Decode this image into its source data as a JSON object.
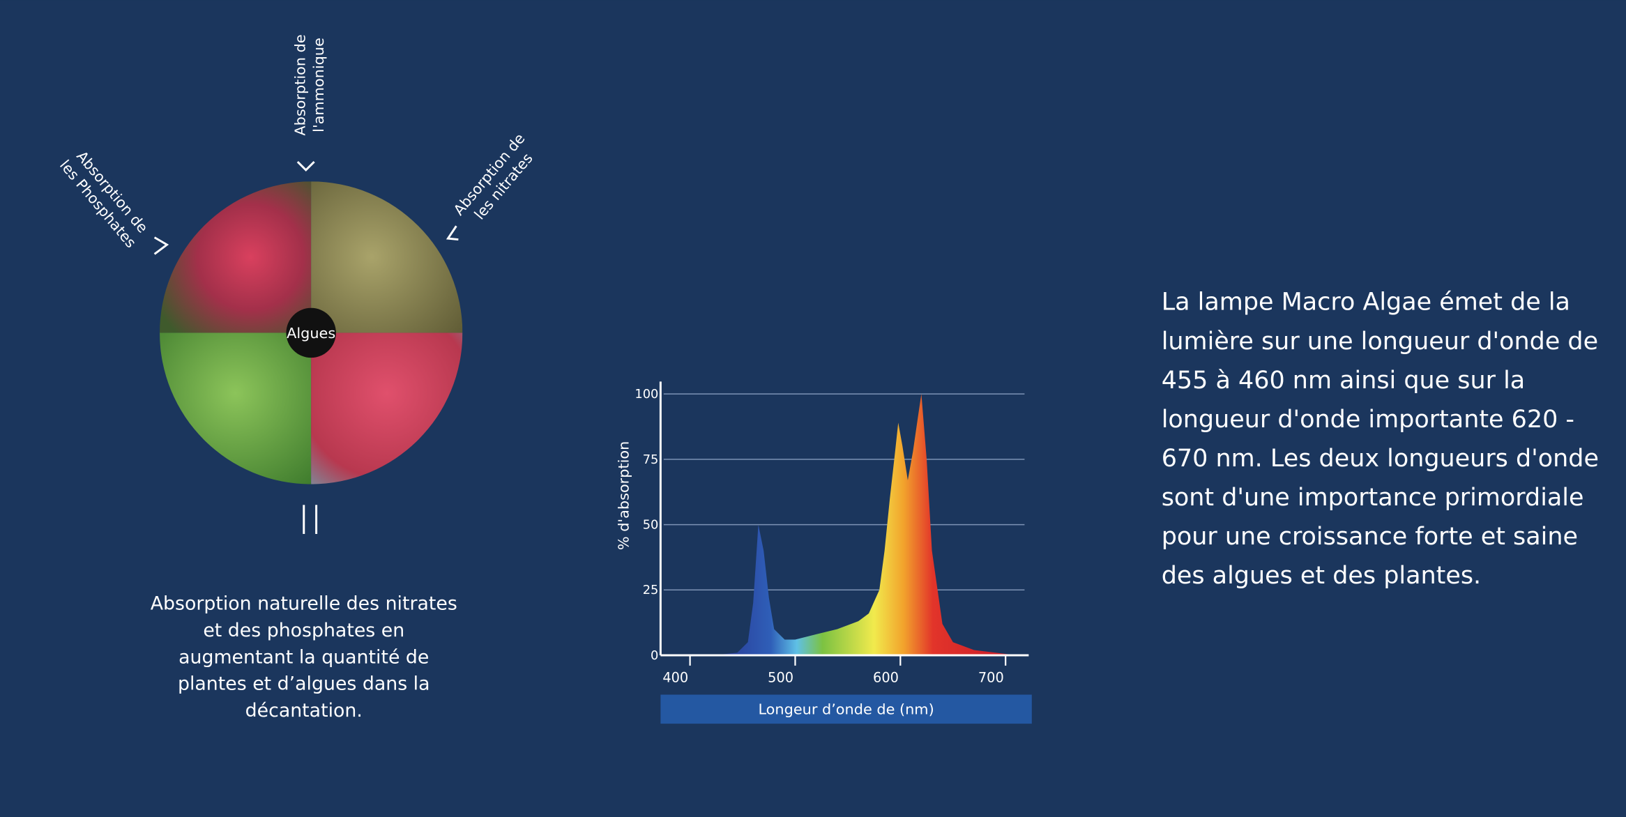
{
  "diagram": {
    "center_label": "Algues",
    "top_label": [
      "Absorption de",
      "l'ammonique"
    ],
    "left_label": [
      "Absorption de",
      "les Phosphates"
    ],
    "right_label": [
      "Absorption de",
      "les nitrates"
    ],
    "caption": [
      "Absorption naturelle des nitrates",
      "et des phosphates en",
      "augmentant la quantité de",
      "plantes et d’algues dans la",
      "décantation."
    ]
  },
  "chart_data": {
    "type": "area",
    "x_label": "Longeur d’onde de (nm)",
    "y_label": "% d'absorption",
    "x": [
      380,
      430,
      445,
      455,
      460,
      465,
      470,
      475,
      480,
      490,
      500,
      520,
      540,
      560,
      570,
      580,
      585,
      590,
      595,
      598,
      602,
      607,
      612,
      617,
      620,
      625,
      630,
      640,
      650,
      670,
      700,
      710
    ],
    "values": [
      0,
      0.3,
      1,
      5,
      20,
      50,
      40,
      22,
      10,
      6,
      6,
      8,
      10,
      13,
      16,
      25,
      40,
      60,
      78,
      89,
      80,
      67,
      78,
      92,
      100,
      75,
      40,
      12,
      5,
      2,
      0.5,
      0
    ],
    "xlim": [
      372,
      722
    ],
    "ylim": [
      0,
      100
    ],
    "xticks": [
      400,
      500,
      600,
      700
    ],
    "yticks": [
      0,
      25,
      50,
      75,
      100
    ],
    "grid": true
  },
  "description": [
    "La lampe Macro Algae émet de la",
    "lumière sur une longueur d'onde de",
    "455 à 460 nm ainsi que sur la",
    "longueur d'onde importante 620 -",
    "670 nm. Les deux longueurs d'onde",
    "sont d'une importance primordiale",
    "pour une croissance forte et saine",
    "des algues et des plantes."
  ]
}
